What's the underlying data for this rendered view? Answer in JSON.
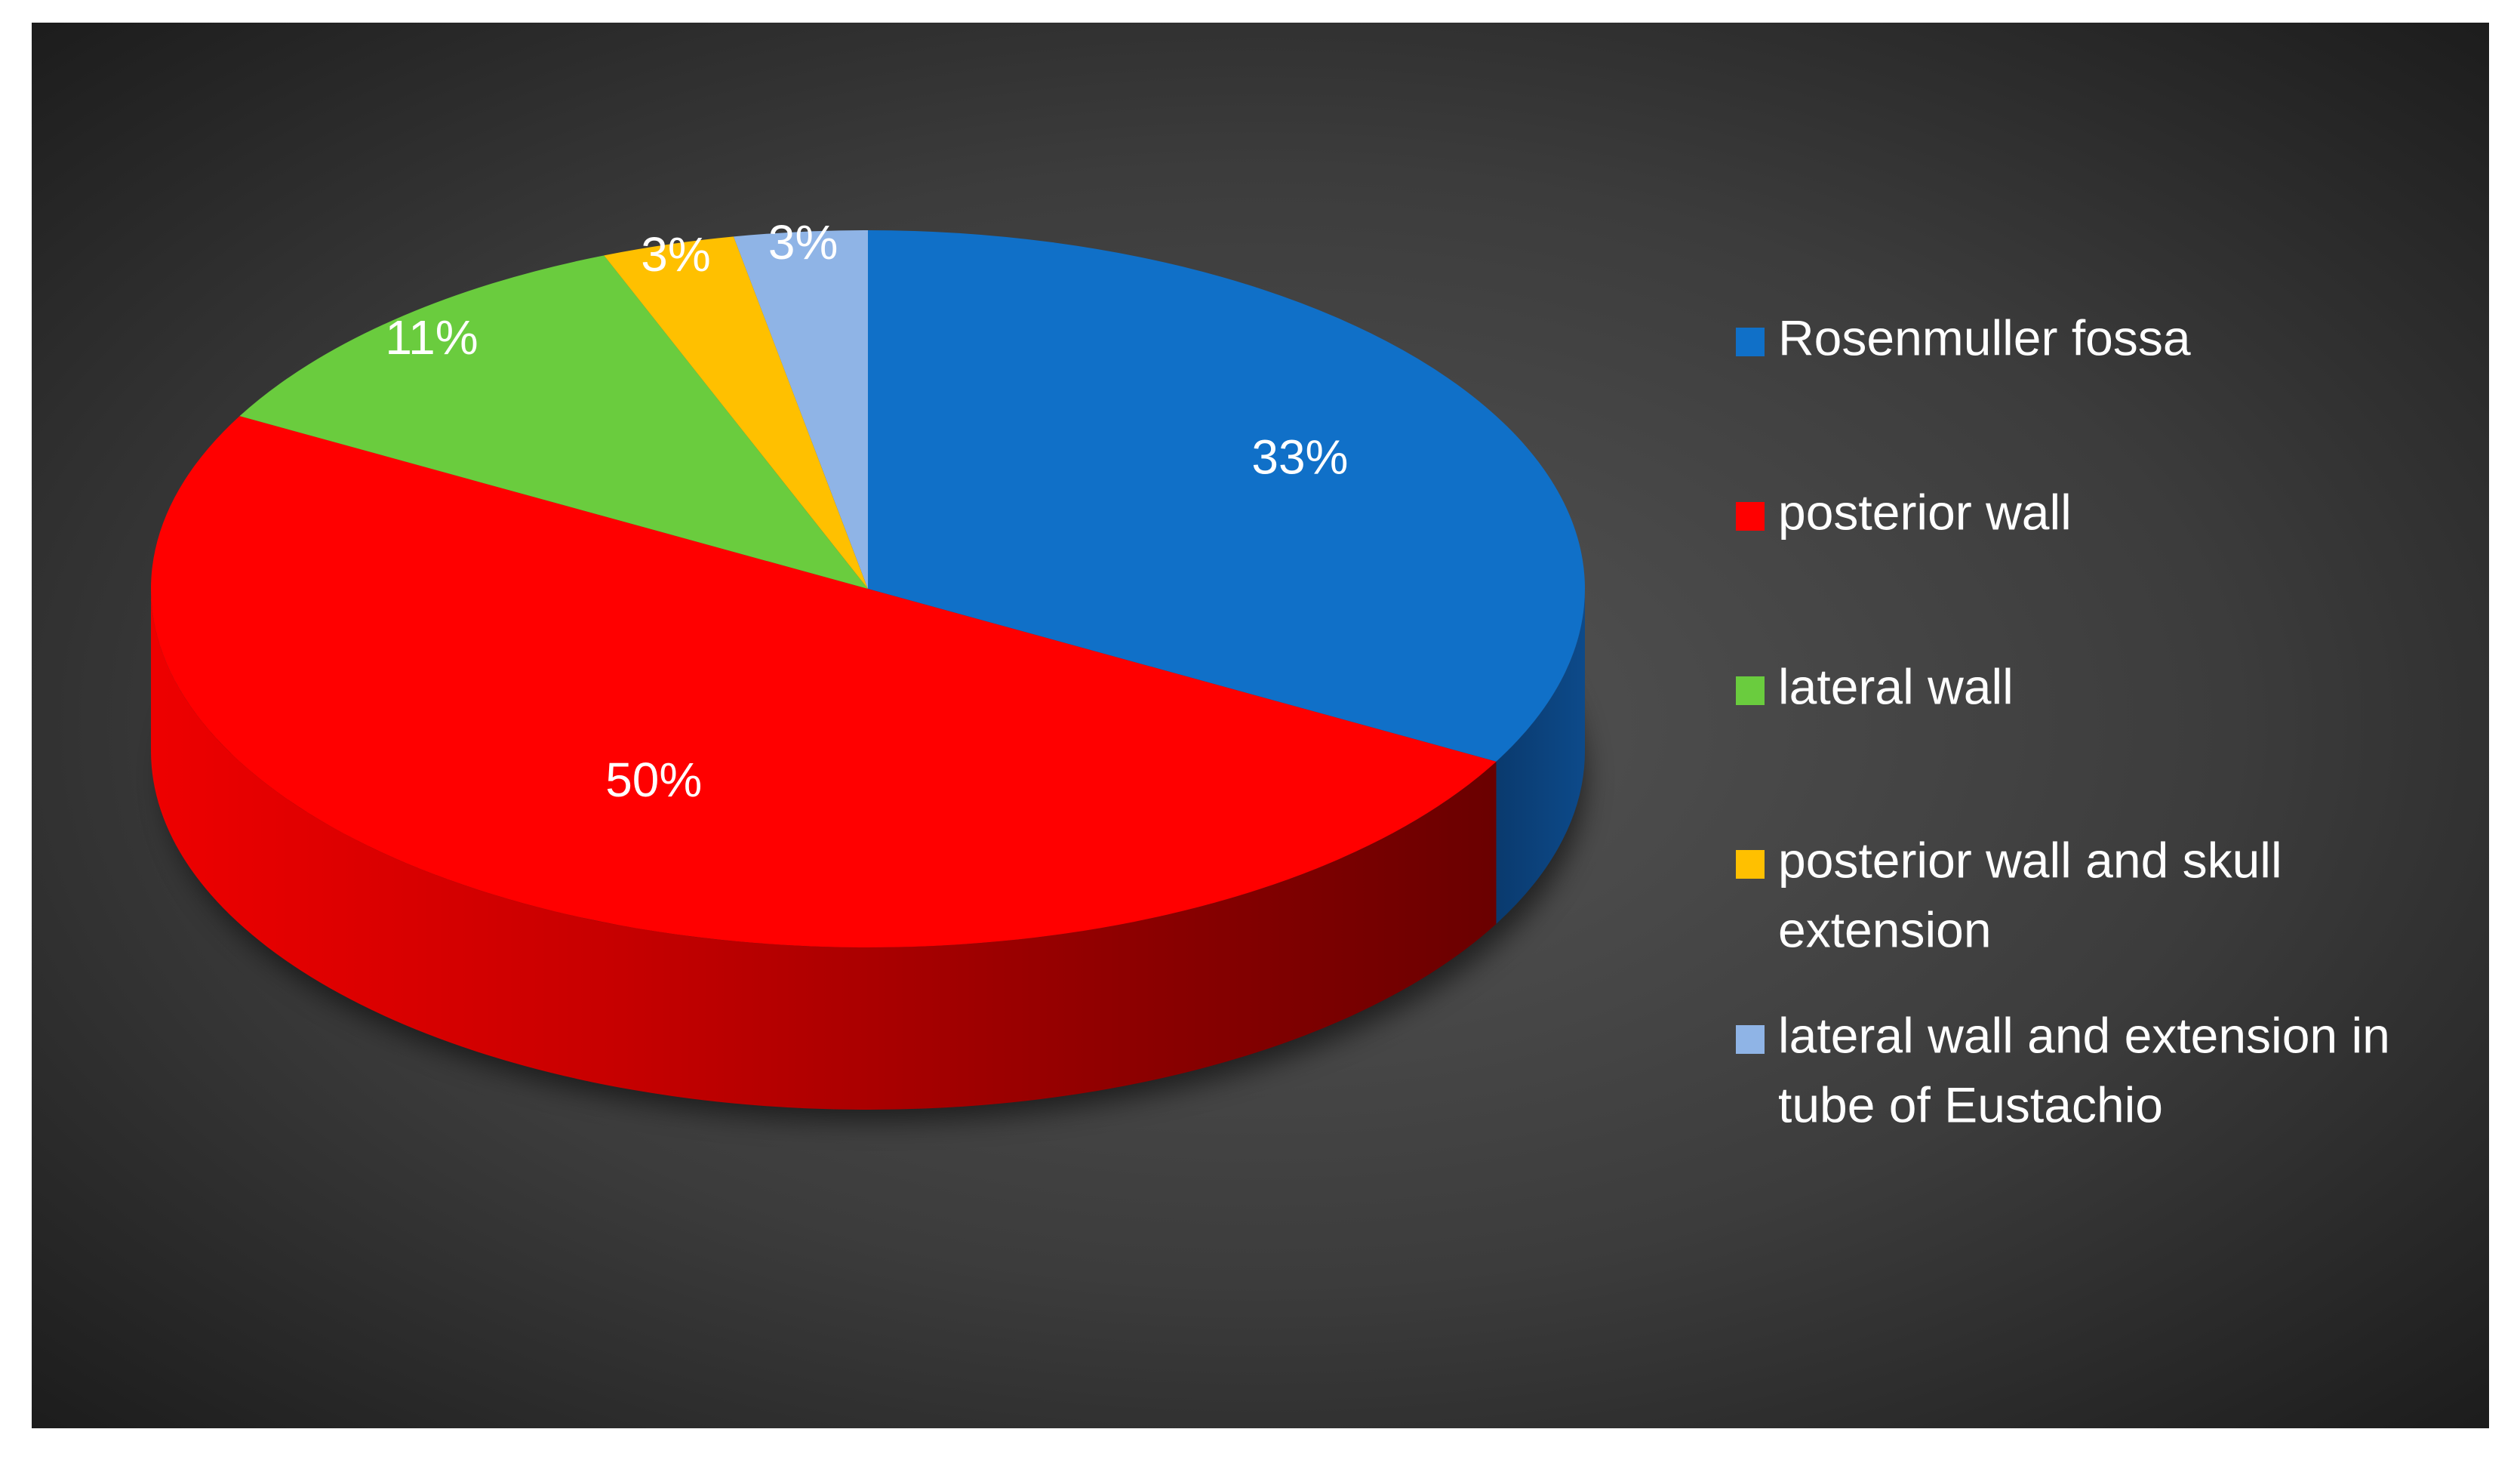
{
  "chart_data": {
    "type": "pie",
    "style": "3d",
    "categories": [
      "Rosenmuller fossa",
      "posterior wall",
      "lateral wall",
      "posterior wall and skull extension",
      "lateral wall and extension in tube of Eustachio"
    ],
    "values": [
      33,
      50,
      11,
      3,
      3
    ],
    "data_labels": [
      "33%",
      "50%",
      "11%",
      "3%",
      "3%"
    ],
    "colors": [
      "#1070c8",
      "#ff0000",
      "#6acc3e",
      "#ffc000",
      "#8fb4e6"
    ],
    "legend": {
      "position": "right",
      "entries": [
        {
          "lines": [
            "Rosenmuller fossa"
          ]
        },
        {
          "lines": [
            "posterior wall"
          ]
        },
        {
          "lines": [
            "lateral wall"
          ]
        },
        {
          "lines": [
            "posterior wall and skull",
            "extension"
          ]
        },
        {
          "lines": [
            "lateral wall and extension in",
            "tube of Eustachio"
          ]
        }
      ]
    },
    "background": "dark radial gradient"
  }
}
